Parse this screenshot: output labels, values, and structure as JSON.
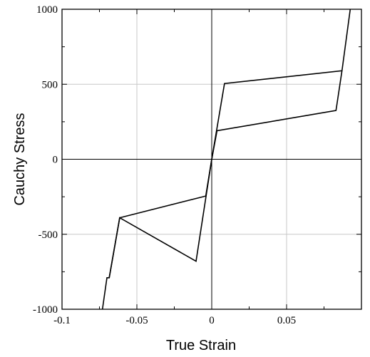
{
  "chart_data": {
    "type": "line",
    "title": "",
    "xlabel": "True Strain",
    "ylabel": "Cauchy Stress",
    "xlim": [
      -0.1,
      0.1
    ],
    "ylim": [
      -1000,
      1000
    ],
    "x_ticks": [
      -0.1,
      -0.05,
      0,
      0.05
    ],
    "x_tick_labels": [
      "-0.1",
      "-0.05",
      "0",
      "0.05"
    ],
    "y_ticks": [
      -1000,
      -500,
      0,
      500,
      1000
    ],
    "y_tick_labels": [
      "-1000",
      "-500",
      "0",
      "500",
      "1000"
    ],
    "grid": true,
    "legend": "none",
    "series": [
      {
        "x": [
          -0.073,
          -0.07,
          -0.0685,
          -0.0615,
          -0.0105,
          0.0,
          0.0085,
          0.087,
          0.0925
        ],
        "y": [
          -1000,
          -790,
          -790,
          -390,
          -680,
          0,
          505,
          590,
          1000
        ]
      },
      {
        "x": [
          -0.0685,
          -0.0615,
          -0.004,
          0.0,
          0.0035,
          0.083,
          0.087
        ],
        "y": [
          -790,
          -390,
          -245,
          0,
          190,
          325,
          590
        ]
      }
    ]
  }
}
